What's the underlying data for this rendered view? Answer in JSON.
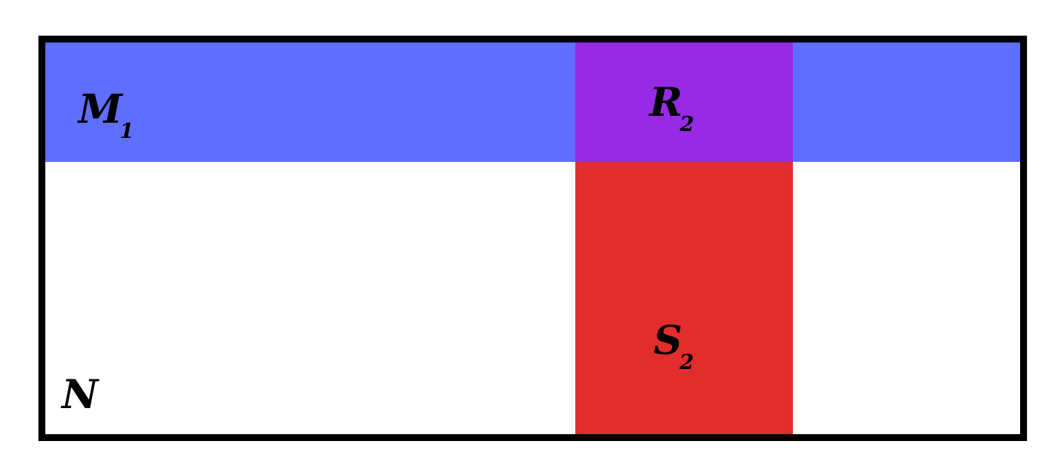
{
  "regions": {
    "M": {
      "name": "M",
      "subscript": "1",
      "color": "#5f6eff"
    },
    "R": {
      "name": "R",
      "subscript": "2",
      "color": "#962ae5"
    },
    "S": {
      "name": "S",
      "subscript": "2",
      "color": "#e22d2d"
    },
    "N": {
      "name": "N",
      "subscript": "",
      "color": "#ffffff"
    }
  },
  "border_color": "#000000"
}
